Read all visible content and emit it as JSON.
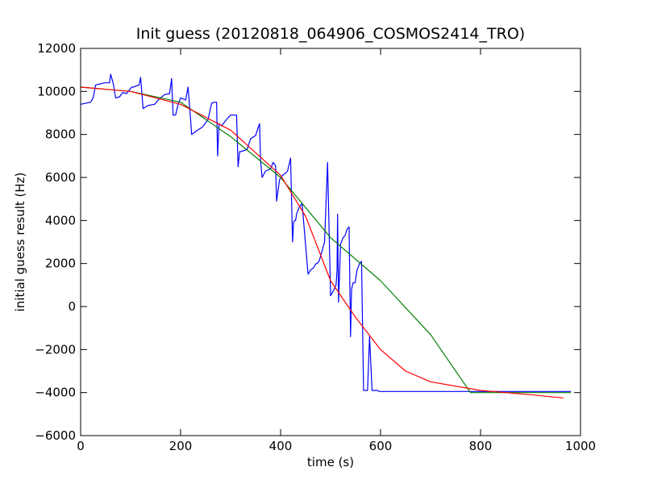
{
  "chart_data": {
    "type": "line",
    "title": "Init guess (20120818_064906_COSMOS2414_TRO)",
    "xlabel": "time (s)",
    "ylabel": "initial guess result (Hz)",
    "xlim": [
      0,
      1000
    ],
    "ylim": [
      -6000,
      12000
    ],
    "xticks": [
      0,
      200,
      400,
      600,
      800,
      1000
    ],
    "yticks": [
      -6000,
      -4000,
      -2000,
      0,
      2000,
      4000,
      6000,
      8000,
      10000,
      12000
    ],
    "xtick_labels": [
      "0",
      "200",
      "400",
      "600",
      "800",
      "1000"
    ],
    "ytick_labels": [
      "−6000",
      "−4000",
      "−2000",
      "0",
      "2000",
      "4000",
      "6000",
      "8000",
      "10000",
      "12000"
    ],
    "grid": false,
    "legend": false,
    "series": [
      {
        "color": "#0000ff",
        "x": [
          0,
          20,
          25,
          30,
          48,
          58,
          60,
          65,
          70,
          78,
          84,
          92,
          102,
          105,
          117,
          120,
          125,
          135,
          148,
          157,
          168,
          178,
          182,
          185,
          190,
          195,
          200,
          210,
          215,
          220,
          222,
          234,
          244,
          255,
          262,
          268,
          272,
          274,
          277,
          282,
          292,
          300,
          312,
          315,
          318,
          320,
          333,
          340,
          350,
          355,
          358,
          360,
          363,
          370,
          380,
          385,
          390,
          392,
          398,
          404,
          410,
          414,
          420,
          424,
          426,
          428,
          430,
          432,
          437,
          443,
          455,
          460,
          466,
          471,
          473,
          477,
          482,
          488,
          494,
          500,
          507,
          511,
          513,
          514,
          516,
          518,
          520,
          525,
          529,
          533,
          537,
          540,
          542,
          545,
          549,
          553,
          558,
          562,
          566,
          568,
          570,
          572,
          574,
          578,
          583,
          587,
          593,
          598,
          603,
          609,
          615,
          618,
          619,
          622,
          628,
          633,
          636,
          637,
          639,
          640,
          643,
          647,
          651,
          654,
          656,
          658,
          660,
          668,
          672,
          673,
          675,
          677,
          680,
          700,
          720,
          740,
          760,
          780,
          800,
          820,
          840,
          860,
          880,
          900,
          920,
          940,
          960,
          980
        ],
        "y": [
          9400,
          9500,
          9700,
          10300,
          10400,
          10400,
          10800,
          10400,
          9700,
          9750,
          9950,
          9900,
          10200,
          10200,
          10300,
          10650,
          9200,
          9350,
          9400,
          9650,
          9850,
          9900,
          10600,
          8900,
          8900,
          9400,
          9700,
          9600,
          10200,
          8700,
          8000,
          8200,
          8350,
          8700,
          9450,
          9500,
          9500,
          7000,
          8500,
          8400,
          8700,
          8900,
          8900,
          6500,
          7200,
          7200,
          7300,
          7800,
          7950,
          8300,
          8500,
          6800,
          6000,
          6300,
          6400,
          6700,
          6550,
          4900,
          5900,
          6100,
          6200,
          6300,
          6900,
          3000,
          3900,
          4000,
          4000,
          4300,
          4600,
          4800,
          1500,
          1700,
          1800,
          2000,
          2000,
          2100,
          2500,
          3000,
          6700,
          500,
          800,
          1000,
          1700,
          4300,
          200,
          1500,
          2900,
          3200,
          3300,
          3600,
          3700,
          -1400,
          800,
          1100,
          1100,
          1700,
          2000,
          2100,
          -3900,
          -3900,
          -3900,
          -3900,
          -3900,
          -1400,
          -3900,
          -3900,
          -3900,
          -3950,
          -3950,
          -3950,
          -3950,
          -3950,
          -3950,
          -3950,
          -3950,
          -3950,
          -3950,
          -3950,
          -3950,
          -3950,
          -3950,
          -3950,
          -3950,
          -3950,
          -3950,
          -3950,
          -3950,
          -3950,
          -3950,
          -3950,
          -3950,
          -3950,
          -3950,
          -3950,
          -3950,
          -3950,
          -3950,
          -3950,
          -3950,
          -3950,
          -3950,
          -3950,
          -3950,
          -3950,
          -3950,
          -3950,
          -3950,
          -3950
        ]
      },
      {
        "color": "#008000",
        "x": [
          0,
          100,
          200,
          300,
          400,
          500,
          600,
          700,
          780,
          800,
          900,
          980
        ],
        "y": [
          10200,
          10000,
          9500,
          7900,
          6000,
          3200,
          1200,
          -1300,
          -4000,
          -4000,
          -4000,
          -4000
        ]
      },
      {
        "color": "#ff0000",
        "x": [
          0,
          100,
          200,
          300,
          400,
          450,
          500,
          550,
          600,
          650,
          700,
          800,
          900,
          965
        ],
        "y": [
          10200,
          10000,
          9400,
          8200,
          6100,
          4200,
          1200,
          -500,
          -2000,
          -3000,
          -3500,
          -3900,
          -4100,
          -4250
        ]
      }
    ]
  }
}
